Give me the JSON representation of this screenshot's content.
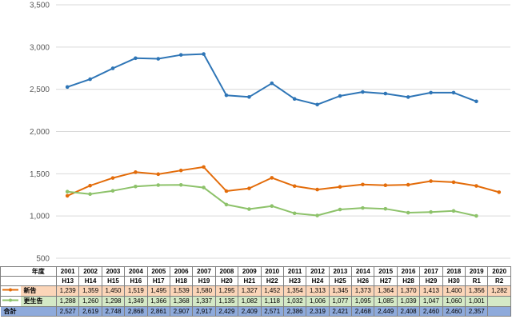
{
  "chart_data": {
    "type": "line",
    "title": "",
    "xlabel": "",
    "ylabel": "",
    "ylim": [
      500,
      3500
    ],
    "yticks": [
      500,
      1000,
      1500,
      2000,
      2500,
      3000,
      3500
    ],
    "ytick_labels": [
      "500",
      "1,000",
      "1,500",
      "2,000",
      "2,500",
      "3,000",
      "3,500"
    ],
    "grid": true,
    "categories": [
      "2001",
      "2002",
      "2003",
      "2004",
      "2005",
      "2006",
      "2007",
      "2008",
      "2009",
      "2010",
      "2011",
      "2012",
      "2013",
      "2014",
      "2015",
      "2016",
      "2017",
      "2018",
      "2019",
      "2020"
    ],
    "series": [
      {
        "key": "total",
        "color": "#2e75b6",
        "values": [
          2527,
          2619,
          2748,
          2868,
          2861,
          2907,
          2917,
          2429,
          2409,
          2571,
          2386,
          2319,
          2421,
          2468,
          2449,
          2408,
          2460,
          2460,
          2357,
          null
        ]
      },
      {
        "key": "new",
        "color": "#e36c0a",
        "values": [
          1239,
          1359,
          1450,
          1519,
          1495,
          1539,
          1580,
          1295,
          1327,
          1452,
          1354,
          1313,
          1345,
          1373,
          1364,
          1370,
          1413,
          1400,
          1356,
          1282
        ]
      },
      {
        "key": "renewal",
        "color": "#8dc26a",
        "values": [
          1288,
          1260,
          1298,
          1349,
          1366,
          1368,
          1337,
          1135,
          1082,
          1118,
          1032,
          1006,
          1077,
          1095,
          1085,
          1039,
          1047,
          1060,
          1001,
          null
        ]
      }
    ]
  },
  "table": {
    "header_label": "年度",
    "eras": [
      "H13",
      "H14",
      "H15",
      "H16",
      "H17",
      "H18",
      "H19",
      "H20",
      "H21",
      "H22",
      "H23",
      "H24",
      "H25",
      "H26",
      "H27",
      "H28",
      "H29",
      "H30",
      "R1",
      "R2"
    ],
    "rows": {
      "new_label": "新告",
      "new_values": [
        "1,239",
        "1,359",
        "1,450",
        "1,519",
        "1,495",
        "1,539",
        "1,580",
        "1,295",
        "1,327",
        "1,452",
        "1,354",
        "1,313",
        "1,345",
        "1,373",
        "1,364",
        "1,370",
        "1,413",
        "1,400",
        "1,356",
        "1,282"
      ],
      "renewal_label": "更生告",
      "renewal_values": [
        "1,288",
        "1,260",
        "1,298",
        "1,349",
        "1,366",
        "1,368",
        "1,337",
        "1,135",
        "1,082",
        "1,118",
        "1,032",
        "1,006",
        "1,077",
        "1,095",
        "1,085",
        "1,039",
        "1,047",
        "1,060",
        "1,001",
        ""
      ],
      "total_label": "合計",
      "total_values": [
        "2,527",
        "2,619",
        "2,748",
        "2,868",
        "2,861",
        "2,907",
        "2,917",
        "2,429",
        "2,409",
        "2,571",
        "2,386",
        "2,319",
        "2,421",
        "2,468",
        "2,449",
        "2,408",
        "2,460",
        "2,460",
        "2,357",
        ""
      ]
    }
  }
}
